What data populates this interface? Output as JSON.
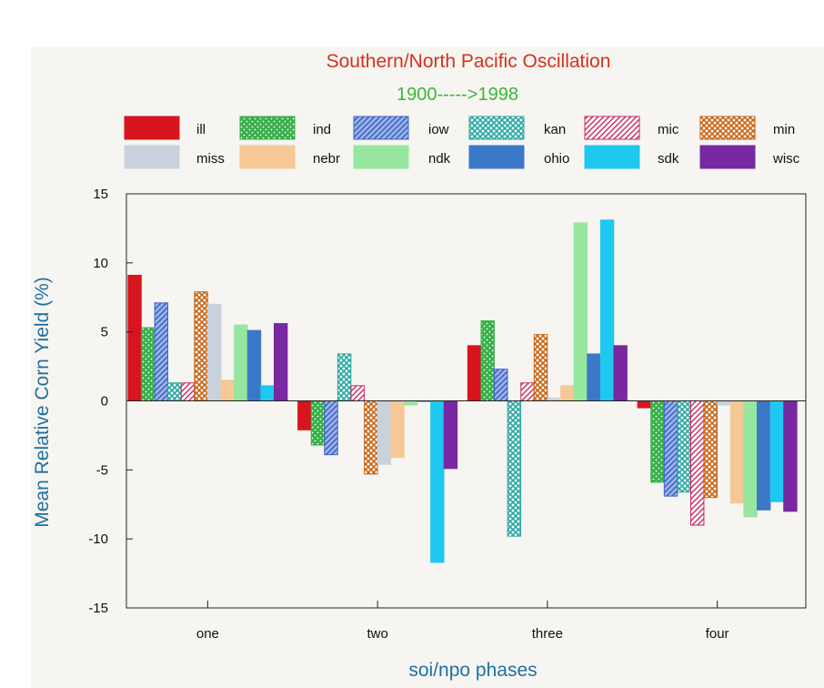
{
  "chart_data": {
    "type": "bar",
    "title": "Southern/North Pacific Oscillation",
    "subtitle": "1900----->1998",
    "xlabel": "soi/npo phases",
    "ylabel": "Mean Relative Corn Yield (%)",
    "ylim": [
      -15,
      15
    ],
    "yticks": [
      15,
      10,
      5,
      0,
      -5,
      -10,
      -15
    ],
    "categories": [
      "one",
      "two",
      "three",
      "four"
    ],
    "legend_position": "top",
    "series": [
      {
        "name": "ill",
        "color": "#d8141e",
        "pattern": "solid",
        "values": [
          9.1,
          -2.1,
          4.0,
          -0.5
        ]
      },
      {
        "name": "ind",
        "color": "#38b04a",
        "pattern": "dots",
        "values": [
          5.3,
          -3.2,
          5.8,
          -5.9
        ]
      },
      {
        "name": "iow",
        "color": "#3c64c8",
        "pattern": "dense-hatch",
        "values": [
          7.1,
          -3.9,
          2.3,
          -6.9
        ]
      },
      {
        "name": "kan",
        "color": "#26a6a0",
        "pattern": "crosshatch",
        "values": [
          1.3,
          3.4,
          -9.8,
          -6.6
        ]
      },
      {
        "name": "mic",
        "color": "#c8285c",
        "pattern": "diagonal",
        "values": [
          1.3,
          1.1,
          1.3,
          -9.0
        ]
      },
      {
        "name": "min",
        "color": "#c86414",
        "pattern": "crosshatch",
        "values": [
          7.9,
          -5.3,
          4.8,
          -7.0
        ]
      },
      {
        "name": "miss",
        "color": "#c8d2dc",
        "pattern": "solid",
        "values": [
          7.0,
          -4.6,
          0.2,
          -0.3
        ]
      },
      {
        "name": "nebr",
        "color": "#f5c896",
        "pattern": "solid",
        "values": [
          1.5,
          -4.1,
          1.1,
          -7.4
        ]
      },
      {
        "name": "ndk",
        "color": "#96e6a0",
        "pattern": "solid",
        "values": [
          5.5,
          -0.3,
          12.9,
          -8.4
        ]
      },
      {
        "name": "ohio",
        "color": "#3c78c8",
        "pattern": "solid",
        "values": [
          5.1,
          0.0,
          3.4,
          -7.9
        ]
      },
      {
        "name": "sdk",
        "color": "#1ec8f0",
        "pattern": "solid",
        "values": [
          1.1,
          -11.7,
          13.1,
          -7.3
        ]
      },
      {
        "name": "wisc",
        "color": "#7828a0",
        "pattern": "solid",
        "values": [
          5.6,
          -4.9,
          4.0,
          -8.0
        ]
      }
    ]
  }
}
